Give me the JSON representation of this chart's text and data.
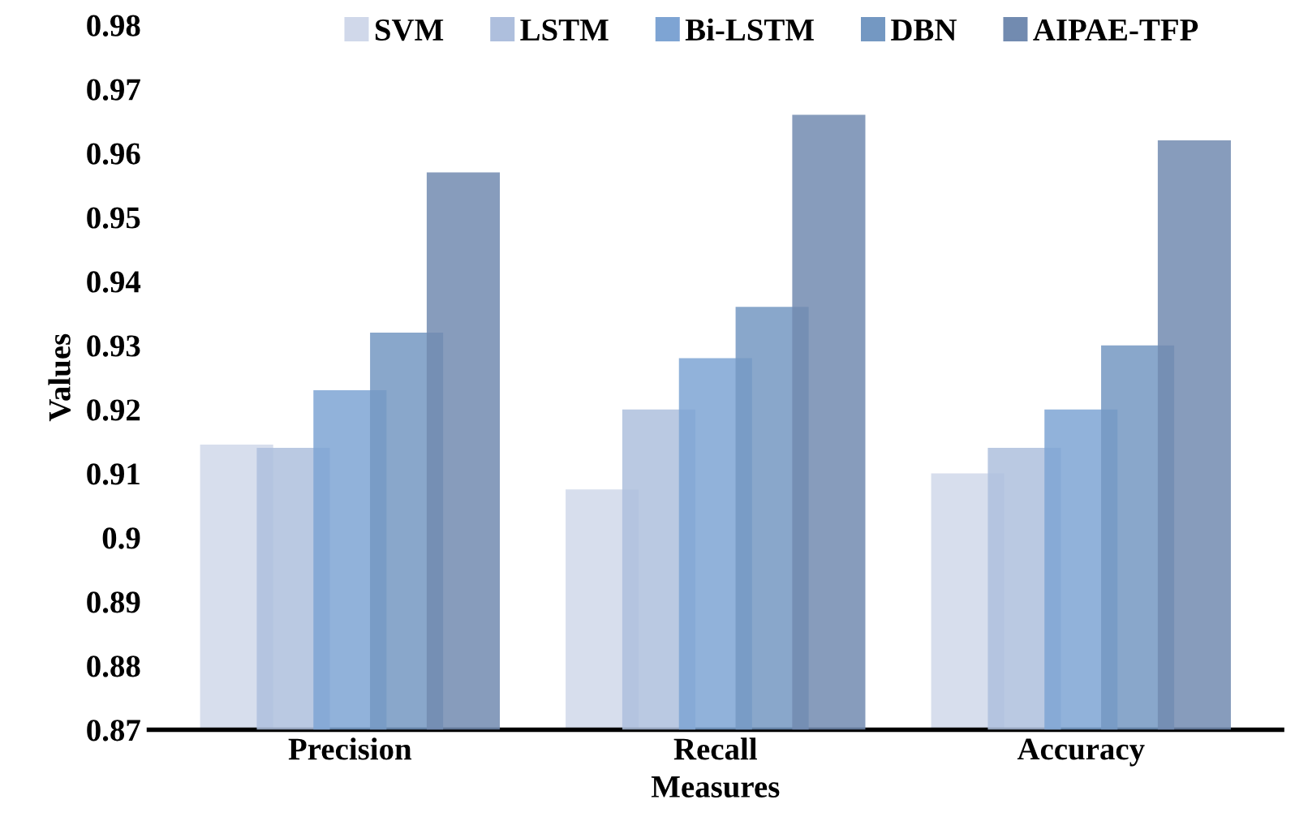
{
  "chart_data": {
    "type": "bar",
    "xlabel": "Measures",
    "ylabel": "Values",
    "categories": [
      "Precision",
      "Recall",
      "Accuracy"
    ],
    "series": [
      {
        "name": "SVM",
        "color": "#d0d8ea",
        "values": [
          0.9145,
          0.9075,
          0.91
        ]
      },
      {
        "name": "LSTM",
        "color": "#aebfdd",
        "values": [
          0.914,
          0.92,
          0.914
        ]
      },
      {
        "name": "Bi-LSTM",
        "color": "#7ea4d3",
        "values": [
          0.923,
          0.928,
          0.92
        ]
      },
      {
        "name": "DBN",
        "color": "#7498c2",
        "values": [
          0.932,
          0.936,
          0.93
        ]
      },
      {
        "name": "AIPAE-TFP",
        "color": "#728bb0",
        "values": [
          0.957,
          0.966,
          0.962
        ]
      }
    ],
    "ylim": [
      0.87,
      0.98
    ],
    "yticks": [
      0.87,
      0.88,
      0.89,
      0.9,
      0.91,
      0.92,
      0.93,
      0.94,
      0.95,
      0.96,
      0.97,
      0.98
    ],
    "grid": false,
    "legend": "top"
  }
}
